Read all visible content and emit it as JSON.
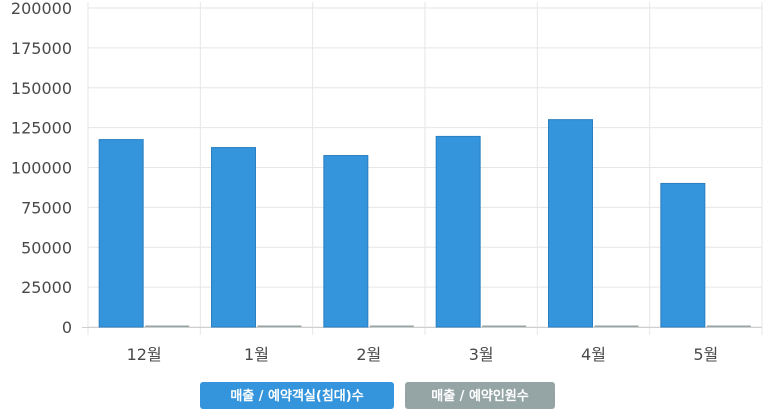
{
  "chart_data": {
    "type": "bar",
    "categories": [
      "12월",
      "1월",
      "2월",
      "3월",
      "4월",
      "5월"
    ],
    "series": [
      {
        "name": "매출 / 예약객실(침대)수",
        "color": "#3494dc",
        "values": [
          117500,
          112500,
          107500,
          119500,
          130000,
          90000
        ]
      },
      {
        "name": "매출 / 예약인원수",
        "color": "#95a5a6",
        "values": [
          0,
          0,
          0,
          0,
          0,
          0
        ]
      }
    ],
    "yticks": [
      0,
      25000,
      50000,
      75000,
      100000,
      125000,
      150000,
      175000,
      200000
    ],
    "ylim": [
      0,
      200000
    ],
    "grid": true,
    "legend_position": "bottom",
    "title": "",
    "xlabel": "",
    "ylabel": ""
  }
}
